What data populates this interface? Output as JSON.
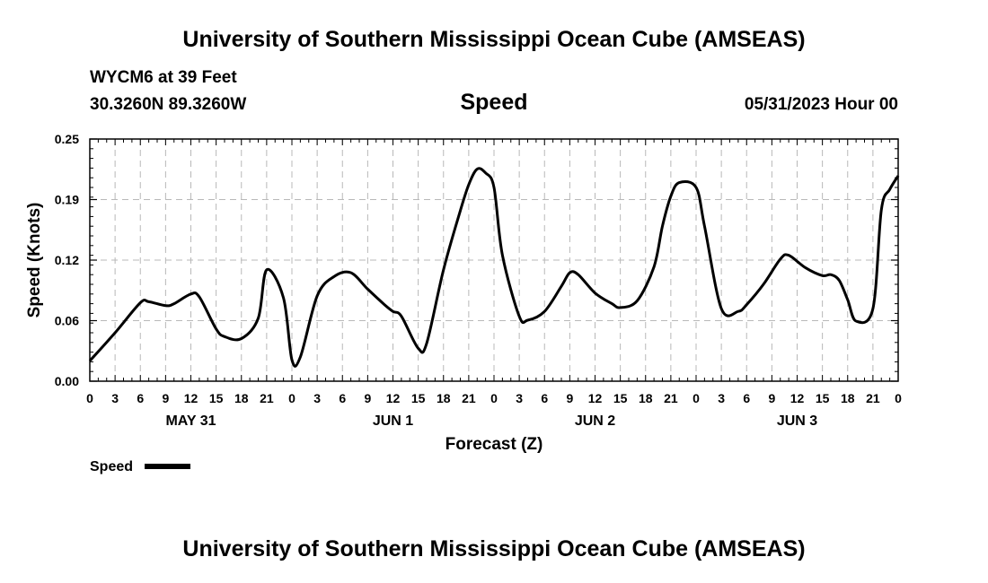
{
  "header": {
    "title_top": "University of Southern Mississippi Ocean Cube (AMSEAS)",
    "title_bottom": "University of Southern Mississippi Ocean Cube (AMSEAS)",
    "station": "WYCM6 at 39 Feet",
    "coords": "30.3260N  89.3260W",
    "datetime": "05/31/2023 Hour 00"
  },
  "chart_data": {
    "type": "line",
    "title": "Speed",
    "xlabel": "Forecast (Z)",
    "ylabel": "Speed (Knots)",
    "ylim": [
      0,
      0.25
    ],
    "yticks": [
      "0.00",
      "0.06",
      "0.12",
      "0.19",
      "0.25"
    ],
    "ytick_values": [
      0,
      0.0625,
      0.125,
      0.1875,
      0.25
    ],
    "xlim": [
      0,
      96
    ],
    "xtick_labels": [
      "0",
      "3",
      "6",
      "9",
      "12",
      "15",
      "18",
      "21",
      "0",
      "3",
      "6",
      "9",
      "12",
      "15",
      "18",
      "21",
      "0",
      "3",
      "6",
      "9",
      "12",
      "15",
      "18",
      "21",
      "0",
      "3",
      "6",
      "9",
      "12",
      "15",
      "18",
      "21",
      "0"
    ],
    "day_labels": [
      {
        "label": "MAY 31",
        "hour": 12
      },
      {
        "label": "JUN 1",
        "hour": 36
      },
      {
        "label": "JUN 2",
        "hour": 60
      },
      {
        "label": "JUN 3",
        "hour": 84
      }
    ],
    "grid": true,
    "legend": {
      "label": "Speed",
      "position": "bottom-left"
    },
    "series": [
      {
        "name": "Speed",
        "x": [
          0,
          3,
          6,
          7,
          9,
          10,
          12,
          13,
          15,
          16,
          18,
          20,
          21,
          23,
          24,
          25,
          27,
          29,
          31,
          33,
          35,
          36,
          37,
          39,
          40,
          42,
          44,
          45,
          46,
          47,
          48,
          49,
          51,
          52,
          54,
          56,
          57,
          58,
          60,
          62,
          63,
          65,
          67,
          68,
          69,
          70,
          72,
          73,
          75,
          77,
          78,
          80,
          82,
          83,
          85,
          87,
          88,
          89,
          90,
          91,
          93,
          94,
          95,
          96
        ],
        "y": [
          0.021,
          0.05,
          0.081,
          0.082,
          0.078,
          0.08,
          0.09,
          0.087,
          0.054,
          0.046,
          0.044,
          0.065,
          0.115,
          0.086,
          0.022,
          0.025,
          0.088,
          0.108,
          0.112,
          0.095,
          0.079,
          0.072,
          0.067,
          0.034,
          0.039,
          0.115,
          0.176,
          0.203,
          0.219,
          0.215,
          0.2,
          0.13,
          0.067,
          0.063,
          0.072,
          0.098,
          0.112,
          0.11,
          0.091,
          0.08,
          0.076,
          0.083,
          0.118,
          0.16,
          0.191,
          0.205,
          0.2,
          0.16,
          0.075,
          0.072,
          0.079,
          0.1,
          0.126,
          0.13,
          0.117,
          0.109,
          0.11,
          0.104,
          0.084,
          0.062,
          0.075,
          0.177,
          0.198,
          0.212
        ]
      }
    ]
  }
}
